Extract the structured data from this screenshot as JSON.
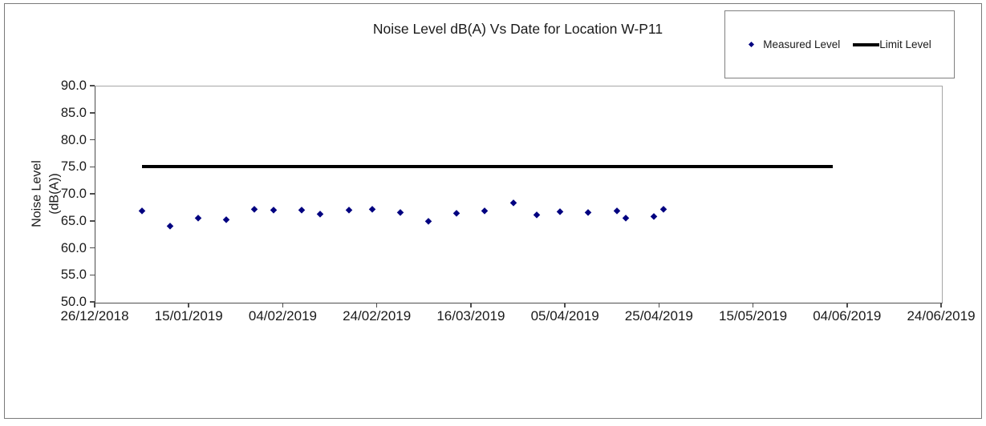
{
  "page": {
    "background": "#ffffff",
    "border_color": "#7a7a7a"
  },
  "chart": {
    "title": "Noise Level dB(A) Vs Date for Location W-P11",
    "y_axis_title": {
      "line1": "Noise Level",
      "line2": "(dB(A))"
    }
  },
  "legend": {
    "position": "top-right",
    "items": [
      {
        "label": "Measured Level",
        "marker": "diamond",
        "color": "#000080"
      },
      {
        "label": "Limit Level",
        "marker": "thick-line",
        "color": "#000000"
      }
    ]
  },
  "chart_data": {
    "type": "scatter",
    "title": "Noise Level dB(A) Vs Date for Location W-P11",
    "xlabel": "",
    "ylabel": "Noise Level (dB(A))",
    "ylim": [
      50.0,
      90.0
    ],
    "grid": false,
    "legend_position": "top-right",
    "y_ticks": [
      "90.0",
      "85.0",
      "80.0",
      "75.0",
      "70.0",
      "65.0",
      "60.0",
      "55.0",
      "50.0"
    ],
    "x_ticks": [
      "26/12/2018",
      "15/01/2019",
      "04/02/2019",
      "24/02/2019",
      "16/03/2019",
      "05/04/2019",
      "25/04/2019",
      "15/05/2019",
      "04/06/2019",
      "24/06/2019"
    ],
    "x_axis_start": "26/12/2018",
    "x_axis_end": "24/06/2019",
    "series": [
      {
        "name": "Measured Level",
        "type": "scatter",
        "marker": "diamond",
        "color": "#000080",
        "points": [
          {
            "date": "05/01/2019",
            "value": 66.9
          },
          {
            "date": "11/01/2019",
            "value": 64.1
          },
          {
            "date": "17/01/2019",
            "value": 65.6
          },
          {
            "date": "23/01/2019",
            "value": 65.3
          },
          {
            "date": "29/01/2019",
            "value": 67.2
          },
          {
            "date": "02/02/2019",
            "value": 67.0
          },
          {
            "date": "08/02/2019",
            "value": 67.0
          },
          {
            "date": "12/02/2019",
            "value": 66.3
          },
          {
            "date": "18/02/2019",
            "value": 67.0
          },
          {
            "date": "23/02/2019",
            "value": 67.2
          },
          {
            "date": "01/03/2019",
            "value": 66.6
          },
          {
            "date": "07/03/2019",
            "value": 65.0
          },
          {
            "date": "13/03/2019",
            "value": 66.4
          },
          {
            "date": "19/03/2019",
            "value": 66.9
          },
          {
            "date": "25/03/2019",
            "value": 68.4
          },
          {
            "date": "30/03/2019",
            "value": 66.1
          },
          {
            "date": "04/04/2019",
            "value": 66.7
          },
          {
            "date": "10/04/2019",
            "value": 66.6
          },
          {
            "date": "16/04/2019",
            "value": 66.9
          },
          {
            "date": "18/04/2019",
            "value": 65.6
          },
          {
            "date": "24/04/2019",
            "value": 65.9
          },
          {
            "date": "26/04/2019",
            "value": 67.2
          }
        ]
      },
      {
        "name": "Limit Level",
        "type": "line",
        "color": "#000000",
        "line_width": 4,
        "value": 75.0,
        "start": "05/01/2019",
        "end": "01/06/2019"
      }
    ]
  }
}
